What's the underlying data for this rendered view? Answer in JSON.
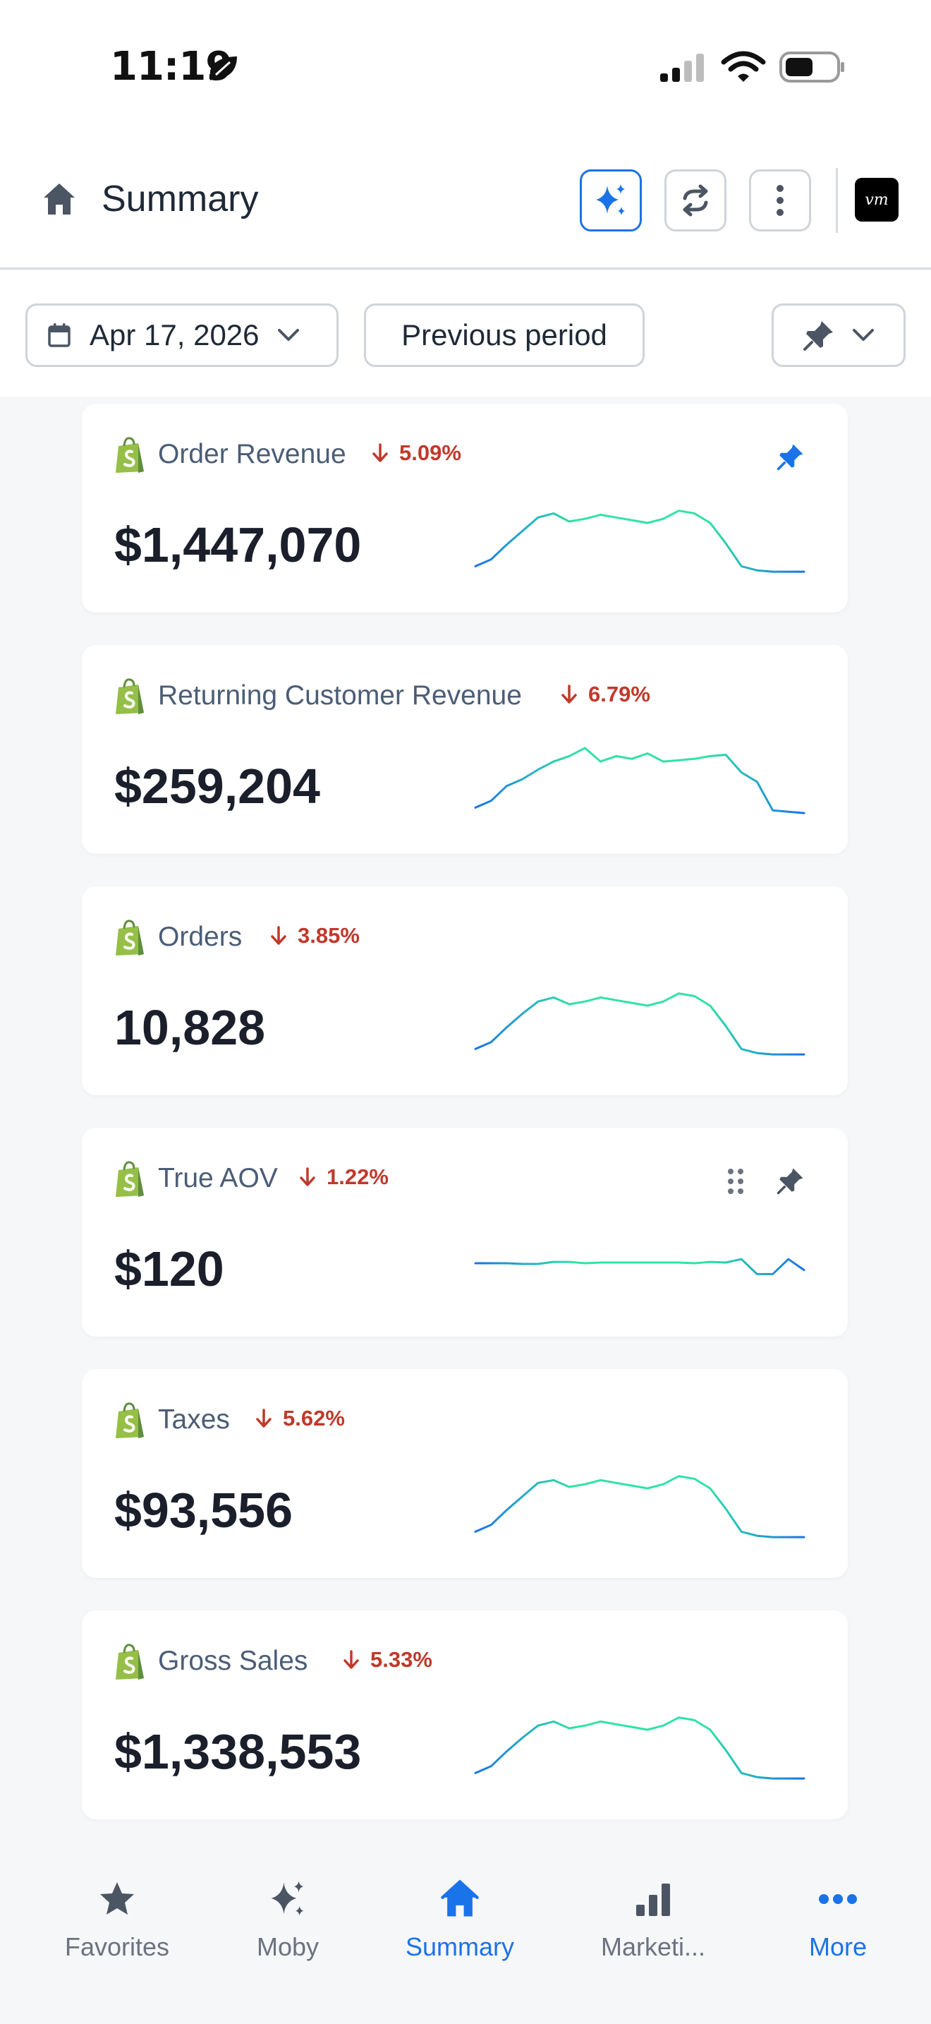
{
  "status_bar": {
    "time": "11:19"
  },
  "header": {
    "title": "Summary",
    "avatar_text": "vm"
  },
  "filters": {
    "date_label": "Apr 17, 2026",
    "compare_label": "Previous period"
  },
  "colors": {
    "accent": "#1a73e8",
    "negative": "#c0392b",
    "shopify_green": "#95bf47",
    "spark_start": "#1a73e8",
    "spark_end": "#2fe3a4"
  },
  "cards": [
    {
      "title": "Order Revenue",
      "delta": "5.09%",
      "value": "$1,447,070",
      "pinned": true,
      "spark": [
        0.1,
        0.2,
        0.42,
        0.62,
        0.82,
        0.88,
        0.76,
        0.8,
        0.86,
        0.82,
        0.78,
        0.74,
        0.8,
        0.92,
        0.88,
        0.74,
        0.44,
        0.1,
        0.04,
        0.02,
        0.02,
        0.02
      ]
    },
    {
      "title": "Returning Customer Revenue",
      "delta": "6.79%",
      "value": "$259,204",
      "pinned": false,
      "spark": [
        0.1,
        0.2,
        0.42,
        0.52,
        0.66,
        0.78,
        0.86,
        0.98,
        0.78,
        0.86,
        0.82,
        0.9,
        0.78,
        0.8,
        0.82,
        0.86,
        0.88,
        0.62,
        0.48,
        0.06,
        0.04,
        0.02
      ]
    },
    {
      "title": "Orders",
      "delta": "3.85%",
      "value": "10,828",
      "pinned": false,
      "spark": [
        0.1,
        0.2,
        0.42,
        0.62,
        0.8,
        0.86,
        0.76,
        0.8,
        0.86,
        0.82,
        0.78,
        0.74,
        0.8,
        0.92,
        0.88,
        0.74,
        0.44,
        0.1,
        0.04,
        0.02,
        0.02,
        0.02
      ]
    },
    {
      "title": "True AOV",
      "delta": "1.22%",
      "value": "$120",
      "pinned": true,
      "spark": [
        0.5,
        0.5,
        0.5,
        0.49,
        0.49,
        0.52,
        0.52,
        0.5,
        0.51,
        0.51,
        0.51,
        0.51,
        0.51,
        0.51,
        0.5,
        0.52,
        0.51,
        0.56,
        0.34,
        0.34,
        0.56,
        0.4
      ]
    },
    {
      "title": "Taxes",
      "delta": "5.62%",
      "value": "$93,556",
      "pinned": false,
      "spark": [
        0.1,
        0.2,
        0.42,
        0.62,
        0.82,
        0.86,
        0.76,
        0.8,
        0.86,
        0.82,
        0.78,
        0.74,
        0.8,
        0.92,
        0.88,
        0.74,
        0.44,
        0.1,
        0.04,
        0.02,
        0.02,
        0.02
      ]
    },
    {
      "title": "Gross Sales",
      "delta": "5.33%",
      "value": "$1,338,553",
      "pinned": false,
      "spark": [
        0.1,
        0.2,
        0.42,
        0.62,
        0.8,
        0.86,
        0.76,
        0.8,
        0.86,
        0.82,
        0.78,
        0.74,
        0.8,
        0.92,
        0.88,
        0.74,
        0.44,
        0.1,
        0.04,
        0.02,
        0.02,
        0.02
      ]
    }
  ],
  "bottom_nav": [
    {
      "label": "Favorites",
      "icon": "star-icon"
    },
    {
      "label": "Moby",
      "icon": "sparkles-icon"
    },
    {
      "label": "Summary",
      "icon": "home-icon",
      "active": true
    },
    {
      "label": "Marketi...",
      "icon": "bar-chart-icon"
    },
    {
      "label": "More",
      "icon": "more-dots-icon"
    }
  ]
}
